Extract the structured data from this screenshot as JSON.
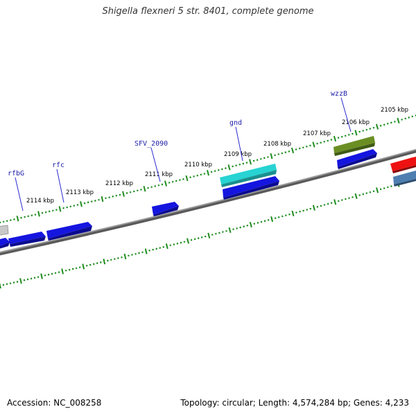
{
  "title": "Shigella flexneri 5 str. 8401, complete genome",
  "footer": {
    "accession": "Accession: NC_008258",
    "stats": "Topology: circular; Length: 4,574,284 bp; Genes: 4,233"
  },
  "map": {
    "tick_labels": [
      "2114 kbp",
      "2113 kbp",
      "2112 kbp",
      "2111 kbp",
      "2110 kbp",
      "2109 kbp",
      "2108 kbp",
      "2107 kbp",
      "2106 kbp",
      "2105 kbp"
    ],
    "gene_labels": [
      "rfbG",
      "rfc",
      "SFV_2090",
      "gnd",
      "wzzB"
    ],
    "colors": {
      "backbone": "#8a8a8a",
      "tick": "#1e8c1e",
      "gene_blue": "#1515e0",
      "gene_cyan": "#27d3d3",
      "gene_olive": "#6b8e23",
      "gene_red": "#ee1111",
      "gene_steel": "#4f7fb0",
      "gene_gray": "#b4b4b4",
      "label": "#1a1aa8"
    }
  }
}
